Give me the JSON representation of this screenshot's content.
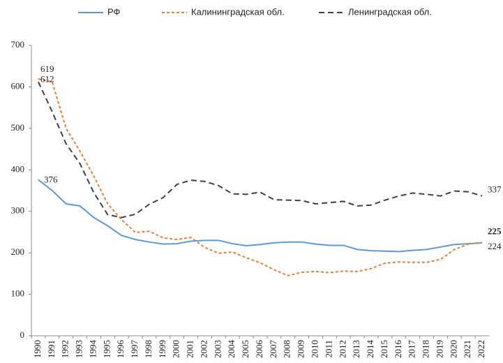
{
  "chart_data": {
    "type": "line",
    "categories": [
      "1990",
      "1991",
      "1992",
      "1993",
      "1994",
      "1995",
      "1996",
      "1997",
      "1998",
      "1999",
      "2000",
      "2001",
      "2002",
      "2003",
      "2004",
      "2005",
      "2006",
      "2007",
      "2008",
      "2009",
      "2010",
      "2011",
      "2012",
      "2013",
      "2014",
      "2015",
      "2016",
      "2017",
      "2018",
      "2019",
      "2020",
      "2021",
      "2022"
    ],
    "series": [
      {
        "name": "РФ",
        "color": "#5b9bd5",
        "dash": "solid",
        "labels_at": [
          0,
          32
        ],
        "values": [
          376,
          350,
          318,
          313,
          285,
          265,
          242,
          232,
          226,
          221,
          222,
          228,
          230,
          230,
          222,
          217,
          220,
          224,
          226,
          226,
          221,
          218,
          218,
          208,
          205,
          204,
          203,
          206,
          208,
          214,
          220,
          222,
          224
        ]
      },
      {
        "name": "Калининградская обл.",
        "color": "#ed7d31",
        "dash": "short",
        "labels_at": [
          0,
          32
        ],
        "values": [
          619,
          612,
          500,
          445,
          385,
          318,
          280,
          249,
          252,
          236,
          232,
          237,
          213,
          199,
          202,
          188,
          176,
          159,
          145,
          153,
          155,
          152,
          156,
          155,
          162,
          175,
          178,
          177,
          177,
          184,
          208,
          221,
          225
        ]
      },
      {
        "name": "Ленинградская обл.",
        "color": "#404040",
        "dash": "long",
        "labels_at": [
          0,
          32
        ],
        "values": [
          612,
          540,
          463,
          415,
          345,
          292,
          285,
          293,
          317,
          333,
          365,
          375,
          372,
          362,
          342,
          341,
          346,
          328,
          327,
          326,
          318,
          321,
          324,
          313,
          315,
          327,
          337,
          344,
          341,
          337,
          349,
          347,
          337
        ]
      }
    ],
    "ylim": [
      0,
      700
    ],
    "yticks": [
      0,
      100,
      200,
      300,
      400,
      500,
      600,
      700
    ],
    "grid": false,
    "legend": "top"
  }
}
